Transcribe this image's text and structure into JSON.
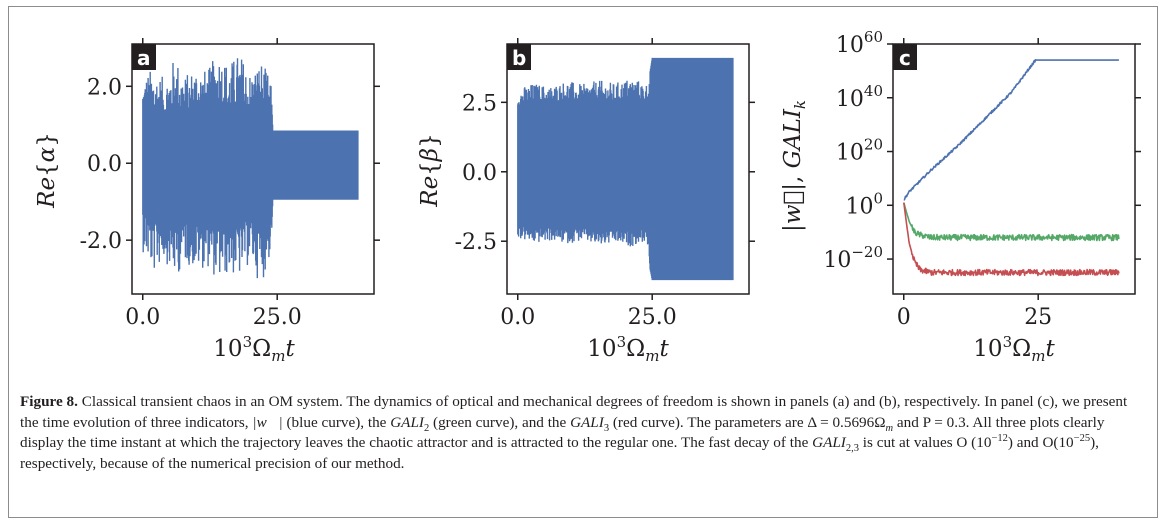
{
  "panels": [
    {
      "id": "a",
      "badge": "a",
      "ylabel": "Re{α}",
      "xlabel": "10³Ω_m t",
      "chart_data": {
        "type": "line",
        "xlabel": "10³Ωₘt",
        "ylabel": "Re{α}",
        "xticks": [
          "0.0",
          "25.0"
        ],
        "yticks": [
          "-2.0",
          "0.0",
          "2.0"
        ],
        "xlim": [
          -2,
          43
        ],
        "ylim": [
          -3.4,
          3.1
        ],
        "series": [
          {
            "color": "#4c72b0",
            "x": [
              0,
              2,
              4,
              6,
              8,
              10,
              12,
              14,
              16,
              18,
              20,
              22,
              23.8,
              24.2,
              26,
              30,
              35,
              40
            ],
            "y_max": [
              2.3,
              2.5,
              2.2,
              2.8,
              2.3,
              2.6,
              2.4,
              2.95,
              2.6,
              2.9,
              2.4,
              2.7,
              2.2,
              0.85,
              0.85,
              0.85,
              0.85,
              0.85
            ],
            "y_min": [
              -2.3,
              -2.9,
              -2.5,
              -3.0,
              -2.6,
              -2.8,
              -2.7,
              -3.1,
              -2.9,
              -3.0,
              -2.6,
              -3.2,
              -2.4,
              -0.95,
              -0.95,
              -0.95,
              -0.95,
              -0.95
            ]
          }
        ]
      }
    },
    {
      "id": "b",
      "badge": "b",
      "ylabel": "Re{β}",
      "xlabel": "10³Ω_m t",
      "chart_data": {
        "type": "line",
        "xlabel": "10³Ωₘt",
        "ylabel": "Re{β}",
        "xticks": [
          "0.0",
          "25.0"
        ],
        "yticks": [
          "-2.5",
          "0.0",
          "2.5"
        ],
        "xlim": [
          -2,
          43
        ],
        "ylim": [
          -4.4,
          4.6
        ],
        "series": [
          {
            "color": "#4c72b0",
            "x": [
              0,
              3,
              6,
              9,
              12,
              15,
              18,
              21,
              24,
              24.6,
              25,
              30,
              35,
              40
            ],
            "y_max": [
              3.0,
              3.2,
              3.1,
              3.3,
              3.15,
              3.3,
              3.2,
              3.4,
              3.2,
              3.6,
              4.1,
              4.1,
              4.1,
              4.1
            ],
            "y_min": [
              -2.4,
              -2.6,
              -2.5,
              -2.6,
              -2.5,
              -2.7,
              -2.6,
              -2.7,
              -2.5,
              -3.5,
              -3.9,
              -3.9,
              -3.9,
              -3.9
            ]
          }
        ]
      }
    },
    {
      "id": "c",
      "badge": "c",
      "ylabel": "|w⃗|, GALI_k",
      "xlabel": "10³Ω_m t",
      "chart_data": {
        "type": "line",
        "yscale": "log",
        "xlabel": "10³Ωₘt",
        "ylabel": "|w⃗|, GALIₖ",
        "xticks": [
          "0",
          "25"
        ],
        "yticks": [
          "10^-20",
          "10^0",
          "10^20",
          "10^40",
          "10^60"
        ],
        "xlim": [
          -2,
          43
        ],
        "ylim_log10": [
          -33,
          60
        ],
        "series": [
          {
            "color": "#4c72b0",
            "x": [
              0,
              1,
              5,
              10,
              15,
              20,
              24.5,
              30,
              35,
              40
            ],
            "log10_y": [
              2,
              5,
              13,
              22,
              32,
              42,
              54,
              54,
              54,
              54
            ]
          },
          {
            "color": "#55a868",
            "x": [
              0,
              1,
              2,
              3,
              5,
              10,
              15,
              20,
              25,
              30,
              35,
              40
            ],
            "log10_y": [
              1,
              -6,
              -10,
              -11,
              -12,
              -12,
              -12,
              -12,
              -12,
              -12,
              -12,
              -12
            ]
          },
          {
            "color": "#c44e52",
            "x": [
              0,
              1,
              2,
              3,
              5,
              10,
              15,
              20,
              25,
              30,
              35,
              40
            ],
            "log10_y": [
              1,
              -14,
              -21,
              -24,
              -25,
              -25,
              -25,
              -25,
              -25,
              -25,
              -25,
              -25
            ]
          }
        ]
      }
    }
  ],
  "caption": {
    "label": "Figure 8.",
    "text1": " Classical transient chaos in an OM system. The dynamics of optical and mechanical degrees of freedom is shown in panels  (a) and (b), respectively. In panel  (c), we present the time evolution of three indicators, ",
    "w": "|w⃗|",
    "text2": " (blue curve), the ",
    "gali": "GALI",
    "sub2": "2",
    "text3": " (green curve), and the ",
    "sub3": "3",
    "text4": " (red curve). The parameters are Δ = 0.5696Ω",
    "subm": "m",
    "text5": " and P = 0.3. All three plots clearly display the time instant at which the trajectory leaves the chaotic attractor and is attracted to the regular one. The fast decay of the ",
    "sub23": "2,3",
    "text6": " is cut at values O (10",
    "sup12": "−12",
    "text7": ") and O(10",
    "sup25": "−25",
    "text8": "), respectively, because of the numerical precision of our method."
  }
}
